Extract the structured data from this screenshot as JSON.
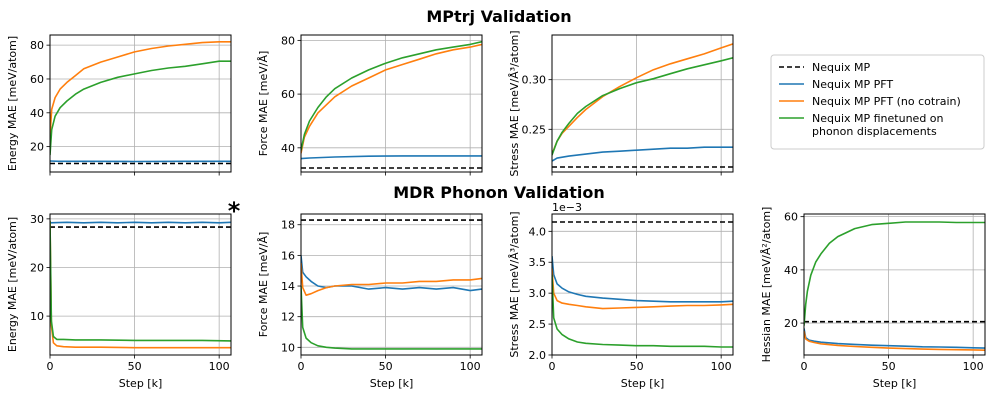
{
  "figure": {
    "title_top": "MPtrj Validation",
    "title_bottom": "MDR Phonon Validation",
    "xlabel": "Step [k]",
    "asterisk": "*",
    "colors": {
      "nequix_mp": "#000000",
      "pft": "#1f77b4",
      "pft_nocotrain": "#ff7f0e",
      "finetuned": "#2ca02c"
    },
    "legend": [
      {
        "key": "nequix_mp",
        "label_lines": [
          "Nequix MP"
        ],
        "style": "dashed"
      },
      {
        "key": "pft",
        "label_lines": [
          "Nequix MP PFT"
        ],
        "style": "solid"
      },
      {
        "key": "pft_nocotrain",
        "label_lines": [
          "Nequix MP PFT (no cotrain)"
        ],
        "style": "solid"
      },
      {
        "key": "finetuned",
        "label_lines": [
          "Nequix MP finetuned on",
          "phonon displacements"
        ],
        "style": "solid"
      }
    ]
  },
  "chart_data": [
    {
      "id": "mptrj-energy",
      "type": "line",
      "panel": "top-1",
      "ylabel": "Energy MAE [meV/atom]",
      "xlim": [
        0,
        107
      ],
      "ylim": [
        5,
        86
      ],
      "xticks": [
        0,
        50,
        100
      ],
      "show_xticklabels": false,
      "yticks": [
        20,
        40,
        60,
        80
      ],
      "ytick_labels": [
        "20",
        "40",
        "60",
        "80"
      ],
      "offset_text": "",
      "series": [
        {
          "key": "nequix_mp",
          "name": "Nequix MP",
          "dashed": true,
          "x": [
            0,
            107
          ],
          "y": [
            10,
            10
          ]
        },
        {
          "key": "pft",
          "name": "Nequix MP PFT",
          "x": [
            0,
            5,
            20,
            50,
            80,
            107
          ],
          "y": [
            11.5,
            11.3,
            11.3,
            11.2,
            11.3,
            11.3
          ]
        },
        {
          "key": "pft_nocotrain",
          "name": "Nequix MP PFT (no cotrain)",
          "x": [
            0,
            1,
            3,
            6,
            10,
            15,
            20,
            30,
            40,
            50,
            60,
            70,
            80,
            90,
            100,
            107
          ],
          "y": [
            26,
            42,
            49,
            54,
            58,
            62,
            66,
            70,
            73,
            76,
            78,
            79.5,
            80.5,
            81.5,
            82,
            82
          ]
        },
        {
          "key": "finetuned",
          "name": "Nequix MP finetuned on phonon displacements",
          "x": [
            0,
            1,
            3,
            6,
            10,
            15,
            20,
            30,
            40,
            50,
            60,
            70,
            80,
            90,
            100,
            107
          ],
          "y": [
            15,
            30,
            38,
            43,
            47,
            51,
            54,
            58,
            61,
            63,
            65,
            66.5,
            67.5,
            69,
            70.5,
            70.5
          ]
        }
      ]
    },
    {
      "id": "mptrj-force",
      "type": "line",
      "panel": "top-2",
      "ylabel": "Force MAE [meV/Å]",
      "xlim": [
        0,
        107
      ],
      "ylim": [
        31,
        82
      ],
      "xticks": [
        0,
        50,
        100
      ],
      "show_xticklabels": false,
      "yticks": [
        40,
        60,
        80
      ],
      "ytick_labels": [
        "40",
        "60",
        "80"
      ],
      "offset_text": "",
      "series": [
        {
          "key": "nequix_mp",
          "name": "Nequix MP",
          "dashed": true,
          "x": [
            0,
            107
          ],
          "y": [
            32.5,
            32.5
          ]
        },
        {
          "key": "pft",
          "name": "Nequix MP PFT",
          "x": [
            0,
            5,
            20,
            40,
            60,
            80,
            107
          ],
          "y": [
            36,
            36.2,
            36.6,
            36.9,
            37,
            37,
            37
          ]
        },
        {
          "key": "pft_nocotrain",
          "name": "Nequix MP PFT (no cotrain)",
          "x": [
            0,
            2,
            5,
            10,
            15,
            20,
            30,
            40,
            50,
            60,
            70,
            80,
            90,
            100,
            107
          ],
          "y": [
            38,
            44,
            48,
            53,
            56,
            59,
            63,
            66,
            69,
            71,
            73,
            75,
            76.5,
            77.5,
            78.5
          ]
        },
        {
          "key": "finetuned",
          "name": "Nequix MP finetuned on phonon displacements",
          "x": [
            0,
            2,
            5,
            10,
            15,
            20,
            30,
            40,
            50,
            60,
            70,
            80,
            90,
            100,
            107
          ],
          "y": [
            39,
            45,
            50,
            55,
            59,
            62,
            66,
            69,
            71.5,
            73.5,
            75,
            76.5,
            77.5,
            78.5,
            79.5
          ]
        }
      ]
    },
    {
      "id": "mptrj-stress",
      "type": "line",
      "panel": "top-3",
      "ylabel": "Stress MAE [meV/Å³/atom]",
      "xlim": [
        0,
        107
      ],
      "ylim": [
        0.207,
        0.345
      ],
      "xticks": [
        0,
        50,
        100
      ],
      "show_xticklabels": false,
      "yticks": [
        0.25,
        0.3
      ],
      "ytick_labels": [
        "0.25",
        "0.30"
      ],
      "offset_text": "",
      "series": [
        {
          "key": "nequix_mp",
          "name": "Nequix MP",
          "dashed": true,
          "x": [
            0,
            107
          ],
          "y": [
            0.212,
            0.212
          ]
        },
        {
          "key": "pft",
          "name": "Nequix MP PFT",
          "x": [
            0,
            3,
            10,
            20,
            30,
            40,
            50,
            60,
            70,
            80,
            90,
            100,
            107
          ],
          "y": [
            0.218,
            0.221,
            0.223,
            0.225,
            0.227,
            0.228,
            0.229,
            0.23,
            0.231,
            0.231,
            0.232,
            0.232,
            0.232
          ]
        },
        {
          "key": "pft_nocotrain",
          "name": "Nequix MP PFT (no cotrain)",
          "x": [
            0,
            3,
            6,
            10,
            15,
            20,
            30,
            40,
            50,
            60,
            70,
            80,
            90,
            100,
            107
          ],
          "y": [
            0.225,
            0.238,
            0.246,
            0.253,
            0.262,
            0.27,
            0.283,
            0.293,
            0.302,
            0.31,
            0.316,
            0.321,
            0.326,
            0.332,
            0.336
          ]
        },
        {
          "key": "finetuned",
          "name": "Nequix MP finetuned on phonon displacements",
          "x": [
            0,
            3,
            6,
            10,
            15,
            20,
            30,
            40,
            50,
            60,
            70,
            80,
            90,
            100,
            107
          ],
          "y": [
            0.224,
            0.238,
            0.247,
            0.256,
            0.266,
            0.273,
            0.284,
            0.291,
            0.297,
            0.301,
            0.306,
            0.311,
            0.315,
            0.319,
            0.322
          ]
        }
      ]
    },
    {
      "id": "mdr-energy",
      "type": "line",
      "panel": "bottom-1",
      "ylabel": "Energy MAE [meV/atom]",
      "xlim": [
        0,
        107
      ],
      "ylim": [
        2,
        31
      ],
      "xticks": [
        0,
        50,
        100
      ],
      "xtick_labels": [
        "0",
        "50",
        "100"
      ],
      "show_xticklabels": true,
      "yticks": [
        10,
        20,
        30
      ],
      "ytick_labels": [
        "10",
        "20",
        "30"
      ],
      "offset_text": "",
      "series": [
        {
          "key": "nequix_mp",
          "name": "Nequix MP",
          "dashed": true,
          "x": [
            0,
            107
          ],
          "y": [
            28.3,
            28.3
          ]
        },
        {
          "key": "pft",
          "name": "Nequix MP PFT",
          "x": [
            0,
            10,
            20,
            30,
            40,
            50,
            60,
            70,
            80,
            90,
            100,
            107
          ],
          "y": [
            29.2,
            29.3,
            29.2,
            29.3,
            29.2,
            29.3,
            29.2,
            29.3,
            29.2,
            29.3,
            29.2,
            29.3
          ]
        },
        {
          "key": "pft_nocotrain",
          "name": "Nequix MP PFT (no cotrain)",
          "x": [
            0,
            0.8,
            2,
            4,
            8,
            15,
            30,
            50,
            70,
            90,
            107
          ],
          "y": [
            29.5,
            8,
            4.5,
            3.9,
            3.7,
            3.6,
            3.6,
            3.5,
            3.5,
            3.5,
            3.5
          ]
        },
        {
          "key": "finetuned",
          "name": "Nequix MP finetuned on phonon displacements",
          "x": [
            0,
            0.8,
            2,
            4,
            8,
            15,
            30,
            50,
            70,
            90,
            107
          ],
          "y": [
            29.6,
            9,
            5.8,
            5.2,
            5.2,
            5.1,
            5.1,
            5.0,
            5.0,
            5.0,
            4.9
          ]
        }
      ]
    },
    {
      "id": "mdr-force",
      "type": "line",
      "panel": "bottom-2",
      "ylabel": "Force MAE [meV/Å]",
      "xlim": [
        0,
        107
      ],
      "ylim": [
        9.5,
        18.7
      ],
      "xticks": [
        0,
        50,
        100
      ],
      "xtick_labels": [
        "0",
        "50",
        "100"
      ],
      "show_xticklabels": true,
      "yticks": [
        10,
        12,
        14,
        16,
        18
      ],
      "ytick_labels": [
        "10",
        "12",
        "14",
        "16",
        "18"
      ],
      "offset_text": "",
      "series": [
        {
          "key": "nequix_mp",
          "name": "Nequix MP",
          "dashed": true,
          "x": [
            0,
            107
          ],
          "y": [
            18.3,
            18.3
          ]
        },
        {
          "key": "pft",
          "name": "Nequix MP PFT",
          "x": [
            0,
            1,
            3,
            6,
            10,
            15,
            20,
            30,
            40,
            50,
            60,
            70,
            80,
            90,
            100,
            107
          ],
          "y": [
            16.0,
            14.9,
            14.6,
            14.3,
            14.0,
            13.9,
            14.0,
            14.0,
            13.8,
            13.9,
            13.8,
            13.9,
            13.8,
            13.9,
            13.7,
            13.8
          ]
        },
        {
          "key": "pft_nocotrain",
          "name": "Nequix MP PFT (no cotrain)",
          "x": [
            0,
            1,
            3,
            6,
            10,
            15,
            20,
            30,
            40,
            50,
            60,
            70,
            80,
            90,
            100,
            107
          ],
          "y": [
            15.5,
            13.9,
            13.4,
            13.5,
            13.7,
            13.9,
            14.0,
            14.1,
            14.1,
            14.2,
            14.2,
            14.3,
            14.3,
            14.4,
            14.4,
            14.5
          ]
        },
        {
          "key": "finetuned",
          "name": "Nequix MP finetuned on phonon displacements",
          "x": [
            0,
            1,
            3,
            6,
            10,
            15,
            20,
            30,
            40,
            50,
            60,
            70,
            80,
            90,
            100,
            107
          ],
          "y": [
            14.0,
            11.3,
            10.6,
            10.3,
            10.1,
            10.0,
            9.95,
            9.9,
            9.9,
            9.9,
            9.9,
            9.9,
            9.9,
            9.9,
            9.9,
            9.9
          ]
        }
      ]
    },
    {
      "id": "mdr-stress",
      "type": "line",
      "panel": "bottom-3",
      "ylabel": "Stress MAE [meV/Å³/atom]",
      "xlim": [
        0,
        107
      ],
      "ylim": [
        2.0,
        4.28
      ],
      "xticks": [
        0,
        50,
        100
      ],
      "xtick_labels": [
        "0",
        "50",
        "100"
      ],
      "show_xticklabels": true,
      "yticks": [
        2.0,
        2.5,
        3.0,
        3.5,
        4.0
      ],
      "ytick_labels": [
        "2.0",
        "2.5",
        "3.0",
        "3.5",
        "4.0"
      ],
      "offset_text": "1e−3",
      "series": [
        {
          "key": "nequix_mp",
          "name": "Nequix MP",
          "dashed": true,
          "x": [
            0,
            107
          ],
          "y": [
            4.15,
            4.15
          ]
        },
        {
          "key": "pft",
          "name": "Nequix MP PFT",
          "x": [
            0,
            1,
            3,
            6,
            10,
            15,
            20,
            30,
            40,
            50,
            60,
            70,
            80,
            90,
            100,
            107
          ],
          "y": [
            3.6,
            3.3,
            3.15,
            3.08,
            3.02,
            2.98,
            2.95,
            2.92,
            2.9,
            2.88,
            2.87,
            2.86,
            2.86,
            2.86,
            2.86,
            2.87
          ]
        },
        {
          "key": "pft_nocotrain",
          "name": "Nequix MP PFT (no cotrain)",
          "x": [
            0,
            1,
            3,
            6,
            10,
            15,
            20,
            30,
            40,
            50,
            60,
            70,
            80,
            90,
            100,
            107
          ],
          "y": [
            3.4,
            3.0,
            2.88,
            2.84,
            2.82,
            2.8,
            2.78,
            2.75,
            2.76,
            2.77,
            2.78,
            2.79,
            2.8,
            2.8,
            2.81,
            2.82
          ]
        },
        {
          "key": "finetuned",
          "name": "Nequix MP finetuned on phonon displacements",
          "x": [
            0,
            1,
            3,
            6,
            10,
            15,
            20,
            30,
            40,
            50,
            60,
            70,
            80,
            90,
            100,
            107
          ],
          "y": [
            3.3,
            2.6,
            2.42,
            2.33,
            2.26,
            2.21,
            2.19,
            2.17,
            2.16,
            2.15,
            2.15,
            2.14,
            2.14,
            2.14,
            2.13,
            2.13
          ]
        }
      ]
    },
    {
      "id": "mdr-hessian",
      "type": "line",
      "panel": "bottom-4",
      "ylabel": "Hessian MAE [meV/Å²/atom]",
      "xlim": [
        0,
        107
      ],
      "ylim": [
        8,
        61
      ],
      "xticks": [
        0,
        50,
        100
      ],
      "xtick_labels": [
        "0",
        "50",
        "100"
      ],
      "show_xticklabels": true,
      "yticks": [
        20,
        40,
        60
      ],
      "ytick_labels": [
        "20",
        "40",
        "60"
      ],
      "offset_text": "",
      "series": [
        {
          "key": "nequix_mp",
          "name": "Nequix MP",
          "dashed": true,
          "x": [
            0,
            107
          ],
          "y": [
            20.5,
            20.5
          ]
        },
        {
          "key": "pft",
          "name": "Nequix MP PFT",
          "x": [
            0,
            1,
            3,
            6,
            10,
            20,
            30,
            40,
            50,
            60,
            70,
            80,
            90,
            100,
            107
          ],
          "y": [
            18,
            14.5,
            13.6,
            13.2,
            12.8,
            12.3,
            12.0,
            11.7,
            11.5,
            11.3,
            11.1,
            11.0,
            10.9,
            10.7,
            10.6
          ]
        },
        {
          "key": "pft_nocotrain",
          "name": "Nequix MP PFT (no cotrain)",
          "x": [
            0,
            1,
            3,
            6,
            10,
            20,
            30,
            40,
            50,
            60,
            70,
            80,
            90,
            100,
            107
          ],
          "y": [
            17,
            14.0,
            13.2,
            12.7,
            12.2,
            11.6,
            11.2,
            10.9,
            10.6,
            10.4,
            10.2,
            10.1,
            10.0,
            9.9,
            9.8
          ]
        },
        {
          "key": "finetuned",
          "name": "Nequix MP finetuned on phonon displacements",
          "x": [
            0,
            1,
            2,
            4,
            7,
            10,
            15,
            20,
            25,
            30,
            40,
            50,
            60,
            70,
            80,
            90,
            100,
            107
          ],
          "y": [
            19,
            27,
            32,
            38,
            43,
            46,
            50,
            52.5,
            54,
            55.5,
            57,
            57.5,
            58,
            58,
            58,
            57.8,
            57.8,
            57.8
          ]
        }
      ]
    }
  ]
}
